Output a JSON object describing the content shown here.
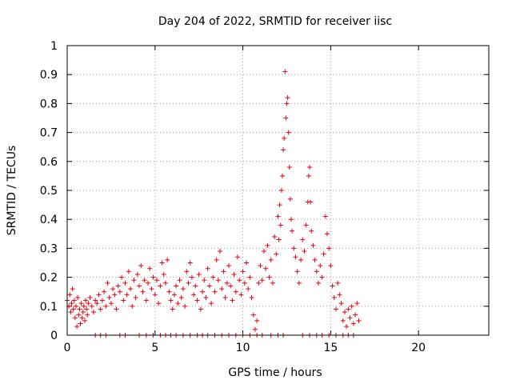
{
  "chart_data": {
    "type": "scatter",
    "title": "Day 204 of 2022, SRMTID for receiver iisc",
    "xlabel": "GPS time / hours",
    "ylabel": "SRMTID / TECUs",
    "xlim": [
      0,
      24
    ],
    "ylim": [
      0,
      1
    ],
    "xticks": [
      0,
      5,
      10,
      15,
      20
    ],
    "yticks": [
      0,
      0.1,
      0.2,
      0.3,
      0.4,
      0.5,
      0.6,
      0.7,
      0.8,
      0.9,
      1
    ],
    "grid": true,
    "marker": "+",
    "color": "#e8000b",
    "series": [
      {
        "name": "SRMTID",
        "points": [
          [
            0.0,
            0.12
          ],
          [
            0.1,
            0.1
          ],
          [
            0.15,
            0.14
          ],
          [
            0.2,
            0.08
          ],
          [
            0.25,
            0.11
          ],
          [
            0.3,
            0.16
          ],
          [
            0.35,
            0.09
          ],
          [
            0.4,
            0.12
          ],
          [
            0.45,
            0.06
          ],
          [
            0.5,
            0.1
          ],
          [
            0.55,
            0.03
          ],
          [
            0.6,
            0.13
          ],
          [
            0.65,
            0.07
          ],
          [
            0.7,
            0.09
          ],
          [
            0.75,
            0.04
          ],
          [
            0.8,
            0.11
          ],
          [
            0.85,
            0.06
          ],
          [
            0.9,
            0.08
          ],
          [
            0.95,
            0.1
          ],
          [
            1.0,
            0.05
          ],
          [
            1.05,
            0.12
          ],
          [
            1.1,
            0.09
          ],
          [
            1.15,
            0.07
          ],
          [
            1.2,
            0.11
          ],
          [
            1.3,
            0.13
          ],
          [
            1.4,
            0.1
          ],
          [
            1.5,
            0.08
          ],
          [
            1.6,
            0.12
          ],
          [
            1.7,
            0.11
          ],
          [
            1.8,
            0.14
          ],
          [
            1.9,
            0.09
          ],
          [
            2.0,
            0.12
          ],
          [
            2.1,
            0.15
          ],
          [
            2.2,
            0.1
          ],
          [
            2.3,
            0.18
          ],
          [
            2.4,
            0.13
          ],
          [
            2.5,
            0.11
          ],
          [
            2.6,
            0.16
          ],
          [
            2.7,
            0.14
          ],
          [
            2.8,
            0.09
          ],
          [
            2.9,
            0.17
          ],
          [
            3.0,
            0.15
          ],
          [
            3.1,
            0.2
          ],
          [
            3.2,
            0.12
          ],
          [
            3.3,
            0.18
          ],
          [
            3.4,
            0.14
          ],
          [
            3.5,
            0.22
          ],
          [
            3.6,
            0.16
          ],
          [
            3.7,
            0.1
          ],
          [
            3.8,
            0.19
          ],
          [
            3.9,
            0.13
          ],
          [
            4.0,
            0.21
          ],
          [
            4.1,
            0.17
          ],
          [
            4.2,
            0.24
          ],
          [
            4.3,
            0.15
          ],
          [
            4.4,
            0.19
          ],
          [
            4.5,
            0.12
          ],
          [
            4.6,
            0.18
          ],
          [
            4.7,
            0.23
          ],
          [
            4.8,
            0.16
          ],
          [
            4.9,
            0.2
          ],
          [
            5.0,
            0.14
          ],
          [
            5.1,
            0.19
          ],
          [
            5.2,
            0.11
          ],
          [
            5.3,
            0.17
          ],
          [
            5.4,
            0.25
          ],
          [
            5.5,
            0.21
          ],
          [
            5.6,
            0.18
          ],
          [
            5.7,
            0.26
          ],
          [
            5.8,
            0.15
          ],
          [
            5.9,
            0.12
          ],
          [
            6.0,
            0.09
          ],
          [
            6.1,
            0.14
          ],
          [
            6.2,
            0.17
          ],
          [
            6.3,
            0.11
          ],
          [
            6.4,
            0.19
          ],
          [
            6.5,
            0.13
          ],
          [
            6.6,
            0.16
          ],
          [
            6.7,
            0.1
          ],
          [
            6.8,
            0.22
          ],
          [
            6.9,
            0.18
          ],
          [
            7.0,
            0.25
          ],
          [
            7.1,
            0.2
          ],
          [
            7.2,
            0.14
          ],
          [
            7.3,
            0.17
          ],
          [
            7.4,
            0.12
          ],
          [
            7.5,
            0.21
          ],
          [
            7.6,
            0.09
          ],
          [
            7.7,
            0.15
          ],
          [
            7.8,
            0.19
          ],
          [
            7.9,
            0.13
          ],
          [
            8.0,
            0.23
          ],
          [
            8.1,
            0.17
          ],
          [
            8.2,
            0.11
          ],
          [
            8.3,
            0.2
          ],
          [
            8.4,
            0.15
          ],
          [
            8.5,
            0.26
          ],
          [
            8.6,
            0.19
          ],
          [
            8.7,
            0.29
          ],
          [
            8.8,
            0.16
          ],
          [
            8.9,
            0.22
          ],
          [
            9.0,
            0.13
          ],
          [
            9.1,
            0.18
          ],
          [
            9.2,
            0.24
          ],
          [
            9.3,
            0.17
          ],
          [
            9.4,
            0.12
          ],
          [
            9.5,
            0.21
          ],
          [
            9.6,
            0.15
          ],
          [
            9.7,
            0.27
          ],
          [
            9.8,
            0.19
          ],
          [
            9.9,
            0.14
          ],
          [
            10.0,
            0.22
          ],
          [
            10.1,
            0.18
          ],
          [
            10.2,
            0.25
          ],
          [
            10.3,
            0.16
          ],
          [
            10.4,
            0.2
          ],
          [
            10.5,
            0.13
          ],
          [
            10.6,
            0.07
          ],
          [
            10.7,
            0.02
          ],
          [
            10.8,
            0.05
          ],
          [
            10.9,
            0.18
          ],
          [
            11.0,
            0.24
          ],
          [
            11.1,
            0.19
          ],
          [
            11.2,
            0.29
          ],
          [
            11.3,
            0.23
          ],
          [
            11.4,
            0.31
          ],
          [
            11.5,
            0.2
          ],
          [
            11.6,
            0.26
          ],
          [
            11.7,
            0.18
          ],
          [
            11.8,
            0.34
          ],
          [
            11.9,
            0.28
          ],
          [
            12.0,
            0.41
          ],
          [
            12.05,
            0.33
          ],
          [
            12.1,
            0.45
          ],
          [
            12.15,
            0.38
          ],
          [
            12.2,
            0.5
          ],
          [
            12.25,
            0.55
          ],
          [
            12.3,
            0.64
          ],
          [
            12.35,
            0.68
          ],
          [
            12.4,
            0.91
          ],
          [
            12.45,
            0.75
          ],
          [
            12.5,
            0.8
          ],
          [
            12.55,
            0.82
          ],
          [
            12.6,
            0.7
          ],
          [
            12.65,
            0.58
          ],
          [
            12.7,
            0.47
          ],
          [
            12.75,
            0.4
          ],
          [
            12.8,
            0.36
          ],
          [
            12.9,
            0.3
          ],
          [
            13.0,
            0.27
          ],
          [
            13.1,
            0.22
          ],
          [
            13.2,
            0.18
          ],
          [
            13.3,
            0.26
          ],
          [
            13.4,
            0.33
          ],
          [
            13.5,
            0.29
          ],
          [
            13.6,
            0.38
          ],
          [
            13.7,
            0.46
          ],
          [
            13.75,
            0.55
          ],
          [
            13.8,
            0.58
          ],
          [
            13.85,
            0.46
          ],
          [
            13.9,
            0.36
          ],
          [
            14.0,
            0.31
          ],
          [
            14.1,
            0.26
          ],
          [
            14.2,
            0.22
          ],
          [
            14.3,
            0.18
          ],
          [
            14.4,
            0.24
          ],
          [
            14.5,
            0.2
          ],
          [
            14.6,
            0.28
          ],
          [
            14.7,
            0.41
          ],
          [
            14.8,
            0.35
          ],
          [
            14.9,
            0.3
          ],
          [
            15.0,
            0.24
          ],
          [
            15.1,
            0.17
          ],
          [
            15.2,
            0.13
          ],
          [
            15.3,
            0.09
          ],
          [
            15.4,
            0.18
          ],
          [
            15.5,
            0.14
          ],
          [
            15.6,
            0.11
          ],
          [
            15.7,
            0.05
          ],
          [
            15.8,
            0.08
          ],
          [
            15.9,
            0.03
          ],
          [
            16.0,
            0.09
          ],
          [
            16.1,
            0.06
          ],
          [
            16.2,
            0.1
          ],
          [
            16.3,
            0.04
          ],
          [
            16.4,
            0.07
          ],
          [
            16.5,
            0.11
          ],
          [
            16.6,
            0.05
          ],
          [
            1.6,
            0.0
          ],
          [
            1.9,
            0.0
          ],
          [
            2.2,
            0.0
          ],
          [
            3.0,
            0.0
          ],
          [
            3.3,
            0.0
          ],
          [
            4.1,
            0.0
          ],
          [
            4.5,
            0.0
          ],
          [
            4.9,
            0.0
          ],
          [
            5.3,
            0.0
          ],
          [
            5.6,
            0.0
          ],
          [
            5.9,
            0.0
          ],
          [
            6.2,
            0.0
          ],
          [
            6.6,
            0.0
          ],
          [
            7.0,
            0.0
          ],
          [
            7.4,
            0.0
          ],
          [
            7.7,
            0.0
          ],
          [
            8.0,
            0.0
          ],
          [
            8.4,
            0.0
          ],
          [
            8.8,
            0.0
          ],
          [
            9.2,
            0.0
          ],
          [
            9.6,
            0.0
          ],
          [
            10.0,
            0.0
          ],
          [
            10.4,
            0.0
          ],
          [
            10.8,
            0.0
          ],
          [
            11.1,
            0.0
          ],
          [
            11.6,
            0.0
          ],
          [
            12.0,
            0.0
          ],
          [
            12.3,
            0.0
          ],
          [
            13.4,
            0.0
          ],
          [
            13.8,
            0.0
          ],
          [
            14.2,
            0.0
          ],
          [
            14.5,
            0.0
          ],
          [
            14.9,
            0.0
          ],
          [
            15.3,
            0.0
          ],
          [
            15.7,
            0.0
          ],
          [
            16.0,
            0.0
          ],
          [
            16.3,
            0.0
          ]
        ]
      }
    ]
  }
}
